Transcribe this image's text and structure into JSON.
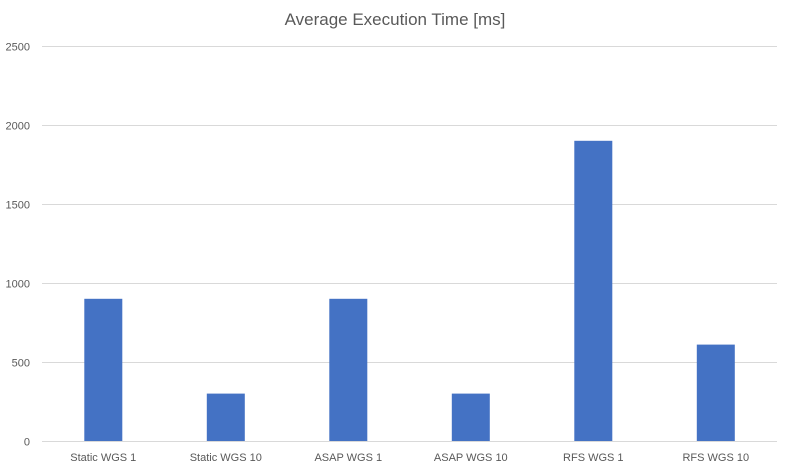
{
  "chart_data": {
    "type": "bar",
    "title": "Average Execution Time [ms]",
    "xlabel": "",
    "ylabel": "",
    "categories": [
      "Static WGS 1",
      "Static WGS 10",
      "ASAP WGS 1",
      "ASAP WGS 10",
      "RFS WGS 1",
      "RFS WGS 10"
    ],
    "values": [
      900,
      300,
      900,
      300,
      1900,
      610
    ],
    "ylim": [
      0,
      2500
    ],
    "yticks": [
      0,
      500,
      1000,
      1500,
      2000,
      2500
    ],
    "grid": true,
    "legend": "none",
    "bar_color": "#4472c4"
  }
}
